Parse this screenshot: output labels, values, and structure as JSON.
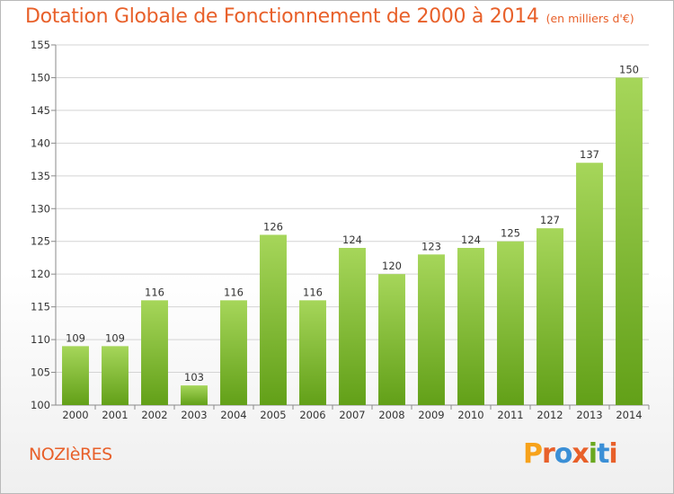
{
  "header": {
    "title": "Dotation Globale de Fonctionnement de 2000 à 2014",
    "subtitle": "(en milliers d'€)"
  },
  "place": "NOZIèRES",
  "logo": {
    "text": "Proxiti",
    "colors": [
      "#f7a21b",
      "#e8602a",
      "#3b8fd6",
      "#e8602a",
      "#6aa820",
      "#3b8fd6",
      "#e8602a"
    ]
  },
  "colors": {
    "bar_light": "#a6d65a",
    "bar_dark": "#62a018",
    "grid": "#d4d4d4",
    "axis": "#8a8a8a",
    "text": "#333333"
  },
  "chart_data": {
    "type": "bar",
    "categories": [
      "2000",
      "2001",
      "2002",
      "2003",
      "2004",
      "2005",
      "2006",
      "2007",
      "2008",
      "2009",
      "2010",
      "2011",
      "2012",
      "2013",
      "2014"
    ],
    "values": [
      109,
      109,
      116,
      103,
      116,
      126,
      116,
      124,
      120,
      123,
      124,
      125,
      127,
      137,
      150
    ],
    "ylim": [
      100,
      155
    ],
    "yticks": [
      100,
      105,
      110,
      115,
      120,
      125,
      130,
      135,
      140,
      145,
      150,
      155
    ],
    "grid": true,
    "data_labels": true
  }
}
